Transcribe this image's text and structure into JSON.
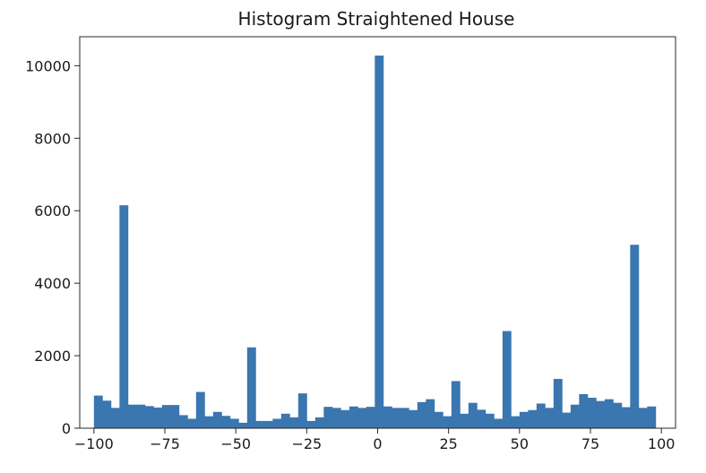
{
  "chart_data": {
    "type": "bar",
    "title": "Histogram Straightened House",
    "xlabel": "",
    "ylabel": "",
    "xlim": [
      -105,
      105
    ],
    "ylim": [
      0,
      10800
    ],
    "x_ticks": [
      -100,
      -75,
      -50,
      -25,
      0,
      25,
      50,
      75,
      100
    ],
    "x_tick_labels": [
      "−100",
      "−75",
      "−50",
      "−25",
      "0",
      "25",
      "50",
      "75",
      "100"
    ],
    "y_ticks": [
      0,
      2000,
      4000,
      6000,
      8000,
      10000
    ],
    "y_tick_labels": [
      "0",
      "2000",
      "4000",
      "6000",
      "8000",
      "10000"
    ],
    "bar_color": "#3a76af",
    "bin_start": -100,
    "bin_width": 3,
    "values": [
      900,
      760,
      560,
      6150,
      650,
      650,
      610,
      570,
      640,
      640,
      360,
      260,
      1000,
      330,
      450,
      340,
      260,
      150,
      2230,
      200,
      200,
      260,
      400,
      300,
      960,
      200,
      300,
      590,
      560,
      500,
      600,
      560,
      590,
      10280,
      600,
      560,
      560,
      500,
      720,
      800,
      450,
      330,
      1300,
      400,
      700,
      510,
      400,
      260,
      2680,
      330,
      450,
      500,
      680,
      560,
      1360,
      430,
      650,
      940,
      840,
      750,
      800,
      700,
      580,
      5060,
      560,
      600
    ]
  }
}
